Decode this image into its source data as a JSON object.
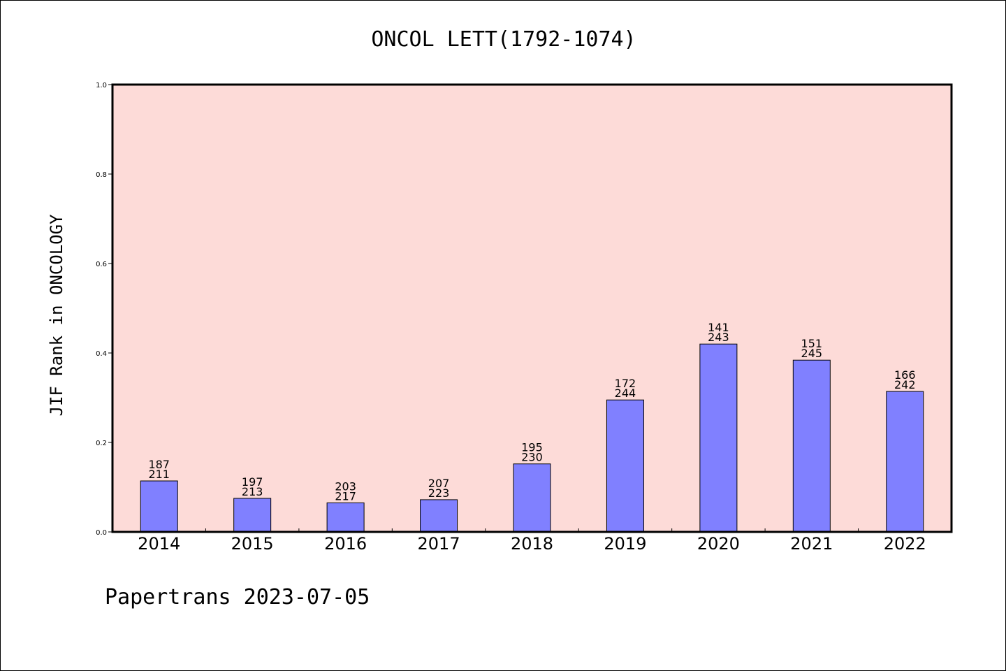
{
  "chart_data": {
    "type": "bar",
    "title": "ONCOL LETT(1792-1074)",
    "ylabel": "JIF Rank in ONCOLOGY",
    "xlabel": "",
    "ylim": [
      0.0,
      1.0
    ],
    "yticks": [
      "0.0",
      "0.2",
      "0.4",
      "0.6",
      "0.8",
      "1.0"
    ],
    "categories": [
      "2014",
      "2015",
      "2016",
      "2017",
      "2018",
      "2019",
      "2020",
      "2021",
      "2022"
    ],
    "values": [
      0.114,
      0.075,
      0.065,
      0.072,
      0.152,
      0.295,
      0.42,
      0.384,
      0.314
    ],
    "rank": [
      "187",
      "197",
      "203",
      "207",
      "195",
      "172",
      "141",
      "151",
      "166"
    ],
    "total": [
      "211",
      "213",
      "217",
      "223",
      "230",
      "244",
      "243",
      "245",
      "242"
    ],
    "grid": false,
    "colors": {
      "plot_background": "#fddbd8",
      "bar_fill": "#8080ff",
      "bar_stroke": "#000000",
      "axis": "#000000"
    }
  },
  "footer": {
    "text": "Papertrans 2023-07-05"
  }
}
